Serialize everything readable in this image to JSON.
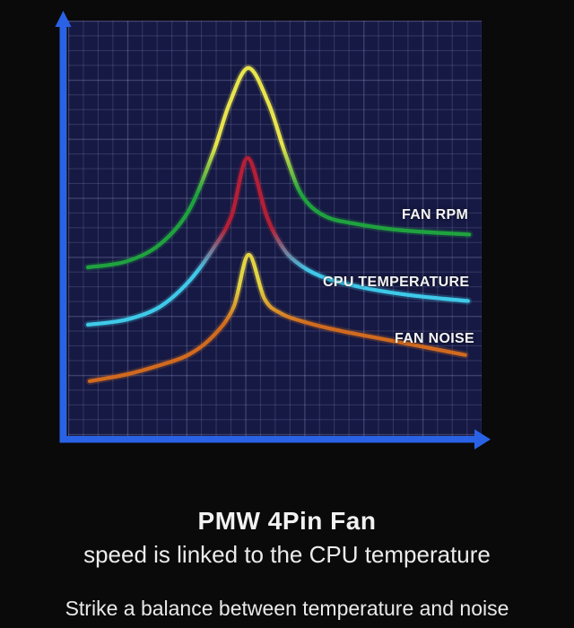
{
  "page": {
    "background_color": "#0a0a0b"
  },
  "chart_data": {
    "type": "line",
    "title": "",
    "xlabel": "",
    "ylabel": "",
    "axes": {
      "style": "arrow",
      "color": "#2a62e6",
      "tick_labels": "none (qualitative chart)"
    },
    "plot_bg": "#161943",
    "grid": {
      "on": true,
      "line_color": "rgba(152,162,212,0.22)",
      "major_line_color": "rgba(195,205,245,0.10)"
    },
    "units": "percent_of_plot_area (x: 0 left - 100 right, y: 0 bottom - 100 top)",
    "legend_position": "labels drawn next to right tail of each curve",
    "series": [
      {
        "name": "FAN RPM",
        "peak_color": "#e8e44c",
        "base_color": "#1fa23e",
        "blend_start": 0.38,
        "blend_end": 0.63,
        "points": [
          [
            4.8,
            40.6
          ],
          [
            14,
            42
          ],
          [
            22,
            46
          ],
          [
            29,
            54
          ],
          [
            35,
            68
          ],
          [
            39,
            80
          ],
          [
            43.6,
            88.6
          ],
          [
            48.5,
            80
          ],
          [
            52.5,
            68
          ],
          [
            56.5,
            58
          ],
          [
            62,
            53
          ],
          [
            70,
            51
          ],
          [
            81,
            49.5
          ],
          [
            97,
            48.5
          ]
        ]
      },
      {
        "name": "CPU TEMPERATURE",
        "peak_color": "#b51f36",
        "base_color": "#3fc9e9",
        "blend_start": 0.42,
        "blend_end": 0.68,
        "points": [
          [
            4.8,
            26.8
          ],
          [
            14,
            28
          ],
          [
            22,
            31
          ],
          [
            29,
            37
          ],
          [
            35,
            45
          ],
          [
            39.5,
            53
          ],
          [
            43.4,
            66.9
          ],
          [
            48,
            53
          ],
          [
            51.5,
            46
          ],
          [
            55,
            42
          ],
          [
            61,
            38.5
          ],
          [
            70,
            36
          ],
          [
            82,
            34
          ],
          [
            96.7,
            32.5
          ]
        ]
      },
      {
        "name": "FAN NOISE",
        "peak_color": "#e2d343",
        "base_color": "#d06a1f",
        "blend_start": 0.25,
        "blend_end": 0.55,
        "points": [
          [
            5.2,
            13.2
          ],
          [
            14,
            14.8
          ],
          [
            22,
            17
          ],
          [
            29,
            19.5
          ],
          [
            35,
            24
          ],
          [
            40,
            31
          ],
          [
            43.6,
            43.6
          ],
          [
            47.5,
            33
          ],
          [
            51.5,
            29.5
          ],
          [
            57,
            27.5
          ],
          [
            65,
            25.5
          ],
          [
            78,
            23
          ],
          [
            96,
            19.5
          ]
        ]
      }
    ]
  },
  "captions": {
    "title": "PMW 4Pin Fan",
    "subtitle": "speed is linked to the CPU temperature",
    "footnote": "Strike a balance between temperature and noise"
  }
}
